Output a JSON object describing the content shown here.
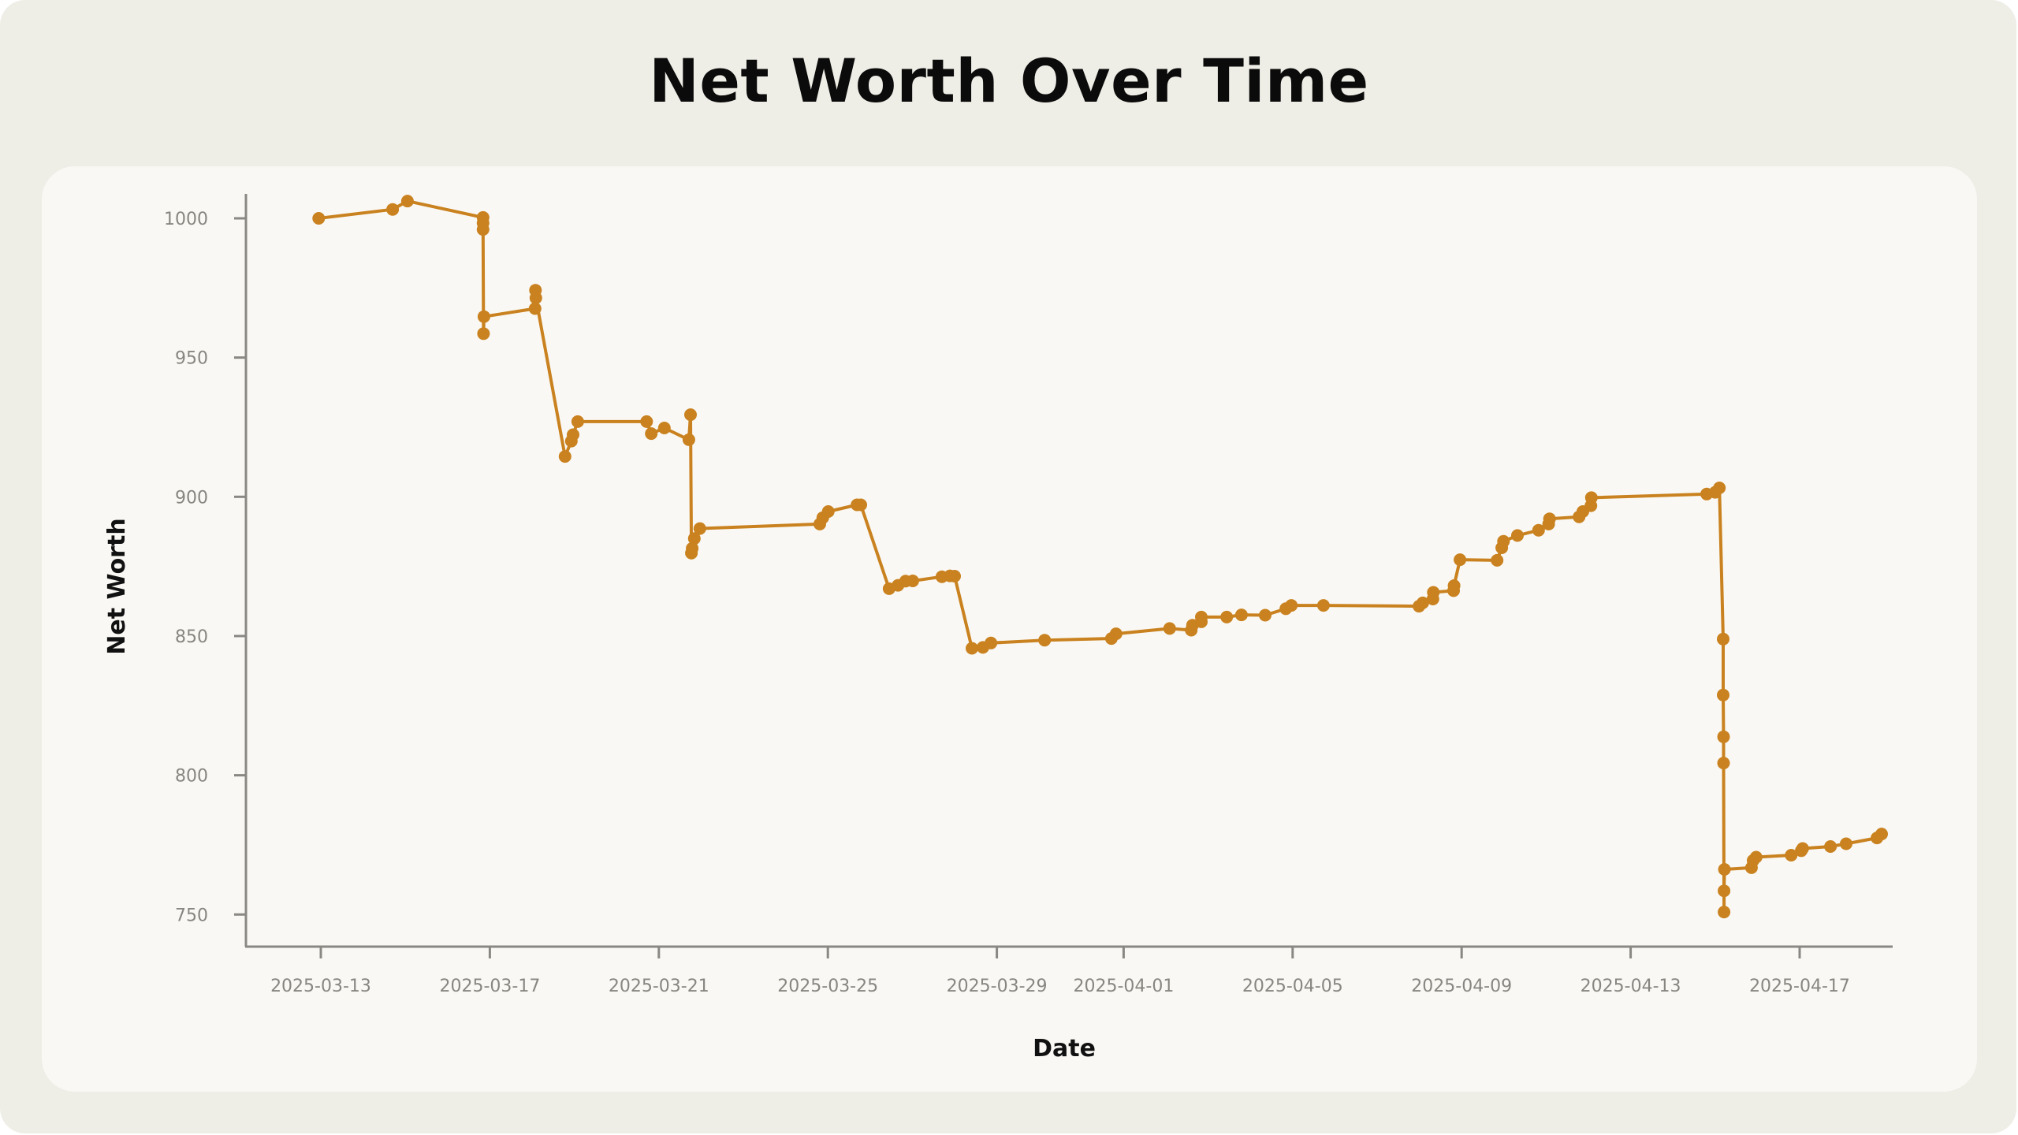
{
  "title": "Net Worth Over Time",
  "colors": {
    "background": "#EEEDE6",
    "panel": "#FAF8F4",
    "line": "#C9821F",
    "axis": "#8A8883",
    "tick_label": "#888680",
    "title": "#0B0B0B"
  },
  "chart_data": {
    "type": "line",
    "title": "Net Worth Over Time",
    "xlabel": "Date",
    "ylabel": "Net Worth",
    "x_origin_date": "2025-03-13",
    "x_unit": "days since 2025-03-13",
    "xlim_days": [
      -1.3,
      37.2
    ],
    "ylim": [
      744,
      1009
    ],
    "grid": false,
    "legend": null,
    "markers": true,
    "x_ticks": [
      {
        "day": 0,
        "label": "2025-03-13"
      },
      {
        "day": 4,
        "label": "2025-03-17"
      },
      {
        "day": 8,
        "label": "2025-03-21"
      },
      {
        "day": 12,
        "label": "2025-03-25"
      },
      {
        "day": 16,
        "label": "2025-03-29"
      },
      {
        "day": 19,
        "label": "2025-04-01"
      },
      {
        "day": 23,
        "label": "2025-04-05"
      },
      {
        "day": 27,
        "label": "2025-04-09"
      },
      {
        "day": 31,
        "label": "2025-04-13"
      },
      {
        "day": 35,
        "label": "2025-04-17"
      }
    ],
    "y_ticks": [
      {
        "value": 1000,
        "label": "1000"
      },
      {
        "value": 950,
        "label": "950"
      },
      {
        "value": 900,
        "label": "900"
      },
      {
        "value": 850,
        "label": "850"
      },
      {
        "value": 800,
        "label": "800"
      },
      {
        "value": 750,
        "label": "750"
      }
    ],
    "series": [
      {
        "name": "Net Worth",
        "x_days": [
          -0.05,
          1.7,
          2.05,
          3.84,
          3.84,
          3.84,
          3.85,
          3.86,
          5.07,
          5.08,
          5.09,
          5.78,
          5.93,
          5.97,
          6.08,
          7.71,
          7.82,
          8.13,
          8.71,
          8.75,
          8.77,
          8.79,
          8.84,
          8.97,
          11.81,
          11.88,
          12.01,
          12.69,
          12.78,
          13.45,
          13.66,
          13.84,
          14.01,
          14.7,
          14.89,
          15.0,
          15.41,
          15.67,
          15.86,
          17.13,
          18.71,
          18.82,
          20.09,
          20.6,
          20.63,
          20.84,
          20.84,
          21.44,
          21.79,
          22.35,
          22.84,
          22.97,
          23.73,
          25.99,
          26.08,
          26.32,
          26.33,
          26.81,
          26.82,
          26.96,
          27.84,
          27.95,
          27.99,
          28.32,
          28.82,
          29.06,
          29.08,
          29.78,
          29.87,
          30.06,
          30.07,
          32.8,
          33.0,
          33.1,
          33.19,
          33.19,
          33.2,
          33.2,
          33.21,
          33.21,
          33.22,
          33.86,
          33.9,
          33.97,
          34.8,
          35.04,
          35.07,
          35.73,
          36.1,
          36.83,
          36.94
        ],
        "values": [
          1000.0,
          1003.2,
          1006.2,
          1000.3,
          998.3,
          996.0,
          958.6,
          964.7,
          967.6,
          974.2,
          971.4,
          914.5,
          920.0,
          922.3,
          927.0,
          927.0,
          922.7,
          924.7,
          920.5,
          929.5,
          879.8,
          881.5,
          885.0,
          888.6,
          890.2,
          892.5,
          894.7,
          897.1,
          897.1,
          867.0,
          868.2,
          869.7,
          869.8,
          871.3,
          871.6,
          871.5,
          845.6,
          845.9,
          847.5,
          848.5,
          849.1,
          850.8,
          852.7,
          852.1,
          853.9,
          855.1,
          856.8,
          856.8,
          857.6,
          857.5,
          859.8,
          861.0,
          861.0,
          860.7,
          861.9,
          863.3,
          865.7,
          866.3,
          868.1,
          877.4,
          877.2,
          881.7,
          884.0,
          886.1,
          888.0,
          890.2,
          892.1,
          892.8,
          894.7,
          896.8,
          899.7,
          901.0,
          901.6,
          903.2,
          848.9,
          828.8,
          813.8,
          804.4,
          750.9,
          758.5,
          766.2,
          766.8,
          769.4,
          770.6,
          771.3,
          772.9,
          773.7,
          774.4,
          775.4,
          777.5,
          778.9
        ]
      }
    ]
  }
}
